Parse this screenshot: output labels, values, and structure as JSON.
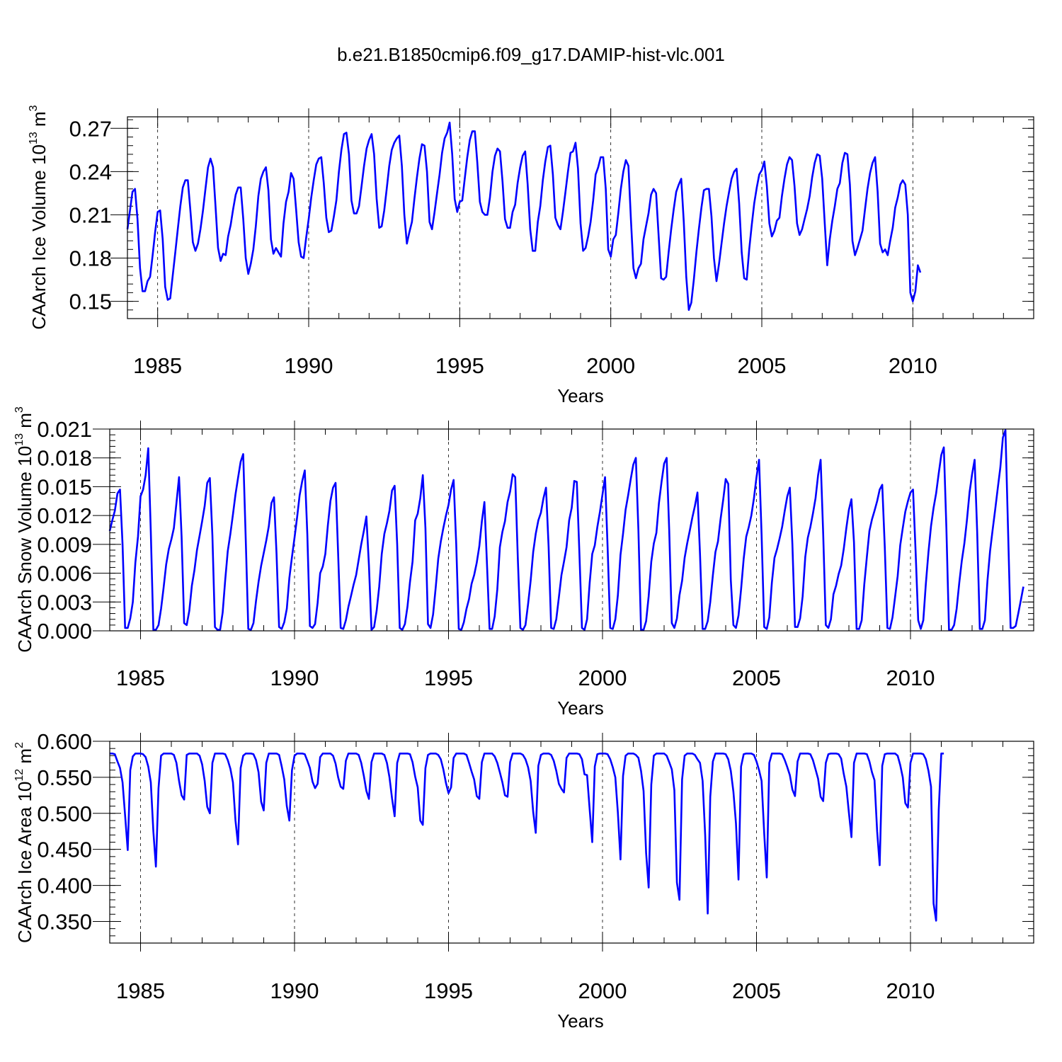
{
  "title": "b.e21.B1850cmip6.f09_g17.DAMIP-hist-vlc.001",
  "colors": {
    "series": "#0000ff",
    "axis": "#000000",
    "gridline": "#000000"
  },
  "chart_data": [
    {
      "type": "line",
      "name": "ice-volume",
      "title": "",
      "xlabel": "Years",
      "ylabel": "CAArch Ice Volume 10",
      "ylabel_exp": "13",
      "ylabel_unit": " m",
      "ylabel_unit_exp": "3",
      "xlim": [
        1984.0,
        2014.0
      ],
      "ylim": [
        0.138,
        0.278
      ],
      "x_ticks": [
        "1985",
        "1990",
        "1995",
        "2000",
        "2005",
        "2010"
      ],
      "y_ticks": [
        "0.15",
        "0.18",
        "0.21",
        "0.24",
        "0.27"
      ],
      "y_tick_values": [
        0.15,
        0.18,
        0.21,
        0.24,
        0.27
      ],
      "x_start": 1984.0,
      "x_step": 0.083333,
      "values": [
        0.2,
        0.213,
        0.226,
        0.228,
        0.207,
        0.173,
        0.157,
        0.157,
        0.164,
        0.167,
        0.182,
        0.198,
        0.212,
        0.213,
        0.193,
        0.16,
        0.151,
        0.152,
        0.168,
        0.184,
        0.2,
        0.216,
        0.229,
        0.234,
        0.234,
        0.213,
        0.191,
        0.185,
        0.19,
        0.2,
        0.213,
        0.228,
        0.243,
        0.249,
        0.243,
        0.216,
        0.187,
        0.178,
        0.183,
        0.182,
        0.195,
        0.203,
        0.214,
        0.224,
        0.229,
        0.229,
        0.207,
        0.18,
        0.169,
        0.176,
        0.186,
        0.202,
        0.223,
        0.235,
        0.24,
        0.243,
        0.227,
        0.193,
        0.183,
        0.187,
        0.184,
        0.181,
        0.204,
        0.219,
        0.226,
        0.239,
        0.235,
        0.214,
        0.191,
        0.181,
        0.18,
        0.194,
        0.207,
        0.222,
        0.234,
        0.245,
        0.249,
        0.25,
        0.232,
        0.208,
        0.198,
        0.199,
        0.209,
        0.22,
        0.24,
        0.255,
        0.266,
        0.267,
        0.252,
        0.22,
        0.211,
        0.211,
        0.216,
        0.23,
        0.244,
        0.256,
        0.262,
        0.266,
        0.252,
        0.221,
        0.201,
        0.202,
        0.213,
        0.228,
        0.244,
        0.255,
        0.26,
        0.263,
        0.265,
        0.244,
        0.21,
        0.19,
        0.198,
        0.205,
        0.221,
        0.236,
        0.249,
        0.259,
        0.258,
        0.24,
        0.205,
        0.2,
        0.212,
        0.225,
        0.238,
        0.253,
        0.263,
        0.267,
        0.274,
        0.252,
        0.221,
        0.212,
        0.219,
        0.22,
        0.235,
        0.25,
        0.262,
        0.268,
        0.268,
        0.246,
        0.219,
        0.212,
        0.21,
        0.21,
        0.222,
        0.24,
        0.251,
        0.256,
        0.254,
        0.233,
        0.207,
        0.201,
        0.201,
        0.212,
        0.217,
        0.232,
        0.243,
        0.251,
        0.254,
        0.231,
        0.2,
        0.185,
        0.185,
        0.205,
        0.216,
        0.234,
        0.247,
        0.257,
        0.258,
        0.238,
        0.208,
        0.203,
        0.2,
        0.212,
        0.226,
        0.24,
        0.253,
        0.254,
        0.26,
        0.242,
        0.204,
        0.185,
        0.187,
        0.195,
        0.205,
        0.22,
        0.238,
        0.243,
        0.25,
        0.25,
        0.228,
        0.186,
        0.181,
        0.193,
        0.196,
        0.211,
        0.228,
        0.24,
        0.248,
        0.244,
        0.207,
        0.173,
        0.166,
        0.173,
        0.176,
        0.193,
        0.202,
        0.211,
        0.224,
        0.228,
        0.225,
        0.196,
        0.166,
        0.165,
        0.167,
        0.184,
        0.2,
        0.214,
        0.226,
        0.231,
        0.235,
        0.205,
        0.167,
        0.144,
        0.149,
        0.165,
        0.184,
        0.2,
        0.215,
        0.227,
        0.228,
        0.228,
        0.209,
        0.18,
        0.164,
        0.176,
        0.19,
        0.204,
        0.216,
        0.226,
        0.235,
        0.24,
        0.242,
        0.218,
        0.184,
        0.166,
        0.165,
        0.186,
        0.203,
        0.218,
        0.229,
        0.238,
        0.241,
        0.247,
        0.23,
        0.204,
        0.195,
        0.199,
        0.206,
        0.208,
        0.223,
        0.235,
        0.245,
        0.25,
        0.248,
        0.23,
        0.204,
        0.196,
        0.2,
        0.207,
        0.214,
        0.223,
        0.236,
        0.246,
        0.252,
        0.251,
        0.235,
        0.204,
        0.175,
        0.193,
        0.206,
        0.216,
        0.228,
        0.232,
        0.246,
        0.253,
        0.252,
        0.231,
        0.192,
        0.182,
        0.187,
        0.193,
        0.199,
        0.214,
        0.228,
        0.239,
        0.246,
        0.25,
        0.226,
        0.19,
        0.184,
        0.186,
        0.182,
        0.192,
        0.201,
        0.215,
        0.222,
        0.231,
        0.234,
        0.231,
        0.21,
        0.156,
        0.15,
        0.157,
        0.175,
        0.17
      ]
    },
    {
      "type": "line",
      "name": "snow-volume",
      "title": "",
      "xlabel": "Years",
      "ylabel": "CAArch Snow Volume 10",
      "ylabel_exp": "13",
      "ylabel_unit": " m",
      "ylabel_unit_exp": "3",
      "xlim": [
        1984.0,
        2014.0
      ],
      "ylim": [
        0.0,
        0.021
      ],
      "x_ticks": [
        "1985",
        "1990",
        "1995",
        "2000",
        "2005",
        "2010"
      ],
      "y_ticks": [
        "0.000",
        "0.003",
        "0.006",
        "0.009",
        "0.012",
        "0.015",
        "0.018",
        "0.021"
      ],
      "y_tick_values": [
        0.0,
        0.003,
        0.006,
        0.009,
        0.012,
        0.015,
        0.018,
        0.021
      ],
      "x_start": 1984.0,
      "x_step": 0.083333,
      "values": [
        0.0104,
        0.0115,
        0.0125,
        0.0143,
        0.0147,
        0.009,
        0.0003,
        0.0003,
        0.0013,
        0.003,
        0.0071,
        0.0098,
        0.014,
        0.0147,
        0.0162,
        0.019,
        0.0103,
        0.0001,
        0.0001,
        0.0006,
        0.0023,
        0.0045,
        0.0069,
        0.0085,
        0.0095,
        0.0107,
        0.0133,
        0.016,
        0.0098,
        0.0008,
        0.0006,
        0.0021,
        0.0047,
        0.0063,
        0.0084,
        0.0099,
        0.0114,
        0.013,
        0.0154,
        0.0159,
        0.0099,
        0.0004,
        0.0001,
        0.0001,
        0.0019,
        0.0053,
        0.0083,
        0.0101,
        0.0121,
        0.0142,
        0.0159,
        0.0176,
        0.0184,
        0.0095,
        0.0002,
        0.0001,
        0.0008,
        0.0031,
        0.0051,
        0.0068,
        0.0081,
        0.0094,
        0.0109,
        0.0133,
        0.0139,
        0.008,
        0.0004,
        0.0002,
        0.0009,
        0.0023,
        0.0055,
        0.0077,
        0.0097,
        0.0118,
        0.0141,
        0.0156,
        0.0167,
        0.01,
        0.0005,
        0.0003,
        0.0007,
        0.0029,
        0.006,
        0.0067,
        0.008,
        0.011,
        0.0135,
        0.0149,
        0.0154,
        0.008,
        0.0003,
        0.0002,
        0.0011,
        0.0025,
        0.0036,
        0.0048,
        0.0058,
        0.0074,
        0.009,
        0.0104,
        0.0119,
        0.0068,
        0.0001,
        0.0004,
        0.0021,
        0.0046,
        0.008,
        0.0101,
        0.0112,
        0.0125,
        0.0146,
        0.0151,
        0.009,
        0.0003,
        0.0001,
        0.0007,
        0.0025,
        0.0051,
        0.0072,
        0.0115,
        0.0122,
        0.0138,
        0.0162,
        0.0107,
        0.0007,
        0.0003,
        0.0017,
        0.0045,
        0.0075,
        0.0093,
        0.0107,
        0.012,
        0.0131,
        0.0147,
        0.0157,
        0.009,
        0.0002,
        0.0001,
        0.0009,
        0.0023,
        0.0033,
        0.0049,
        0.0058,
        0.0071,
        0.0088,
        0.0114,
        0.0134,
        0.0068,
        0.0002,
        0.0002,
        0.0015,
        0.0043,
        0.0087,
        0.0103,
        0.0114,
        0.0134,
        0.0145,
        0.0163,
        0.016,
        0.0075,
        0.0003,
        0.0001,
        0.0006,
        0.0028,
        0.0052,
        0.0082,
        0.0101,
        0.0115,
        0.0123,
        0.0138,
        0.0149,
        0.0087,
        0.0003,
        0.0002,
        0.0012,
        0.0035,
        0.0058,
        0.0072,
        0.0087,
        0.0115,
        0.0128,
        0.0156,
        0.0155,
        0.008,
        0.0003,
        0.0001,
        0.0012,
        0.005,
        0.008,
        0.0089,
        0.0108,
        0.0124,
        0.0142,
        0.016,
        0.0087,
        0.0003,
        0.0002,
        0.0012,
        0.0037,
        0.0079,
        0.0101,
        0.0126,
        0.0141,
        0.0158,
        0.0173,
        0.018,
        0.0105,
        0.0001,
        0.0001,
        0.001,
        0.0036,
        0.0072,
        0.0091,
        0.0102,
        0.0133,
        0.0155,
        0.0174,
        0.018,
        0.0105,
        0.0008,
        0.0003,
        0.0013,
        0.0037,
        0.0052,
        0.0076,
        0.0091,
        0.0104,
        0.0118,
        0.013,
        0.0144,
        0.008,
        0.0002,
        0.0002,
        0.001,
        0.003,
        0.0058,
        0.0082,
        0.0093,
        0.0116,
        0.0136,
        0.0158,
        0.0153,
        0.0053,
        0.0006,
        0.0003,
        0.0016,
        0.0043,
        0.0075,
        0.0098,
        0.0108,
        0.012,
        0.0138,
        0.016,
        0.0178,
        0.01,
        0.0004,
        0.0002,
        0.0014,
        0.005,
        0.0076,
        0.0085,
        0.0096,
        0.0108,
        0.0125,
        0.014,
        0.0149,
        0.009,
        0.0004,
        0.0004,
        0.0013,
        0.0036,
        0.0077,
        0.0097,
        0.0108,
        0.0122,
        0.0138,
        0.0162,
        0.0178,
        0.0101,
        0.0006,
        0.0003,
        0.0012,
        0.0038,
        0.0047,
        0.0059,
        0.0068,
        0.0085,
        0.0107,
        0.0126,
        0.0137,
        0.0092,
        0.0002,
        0.0002,
        0.0011,
        0.0048,
        0.0077,
        0.0104,
        0.0116,
        0.0125,
        0.0135,
        0.0147,
        0.0152,
        0.0087,
        0.0003,
        0.0002,
        0.0014,
        0.0035,
        0.0057,
        0.0089,
        0.0107,
        0.0124,
        0.0135,
        0.0144,
        0.0147,
        0.0083,
        0.0011,
        0.0002,
        0.0011,
        0.0049,
        0.0082,
        0.0109,
        0.0128,
        0.0143,
        0.0164,
        0.0183,
        0.0191,
        0.0107,
        0.0001,
        0.0001,
        0.0006,
        0.0023,
        0.005,
        0.0073,
        0.0091,
        0.0115,
        0.0144,
        0.0163,
        0.0178,
        0.0103,
        0.0002,
        0.0002,
        0.0011,
        0.0052,
        0.0083,
        0.0105,
        0.0126,
        0.0148,
        0.017,
        0.0201,
        0.0209,
        0.0108,
        0.0003,
        0.0003,
        0.0005,
        0.0018,
        0.0032,
        0.0046
      ]
    },
    {
      "type": "line",
      "name": "ice-area",
      "title": "",
      "xlabel": "Years",
      "ylabel": "CAArch Ice Area 10",
      "ylabel_exp": "12",
      "ylabel_unit": " m",
      "ylabel_unit_exp": "2",
      "xlim": [
        1984.0,
        2014.0
      ],
      "ylim": [
        0.32,
        0.6
      ],
      "x_ticks": [
        "1985",
        "1990",
        "1995",
        "2000",
        "2005",
        "2010"
      ],
      "y_ticks": [
        "0.350",
        "0.400",
        "0.450",
        "0.500",
        "0.550",
        "0.600"
      ],
      "y_tick_values": [
        0.35,
        0.4,
        0.45,
        0.5,
        0.55,
        0.6
      ],
      "x_start": 1984.0,
      "x_step": 0.083333,
      "values": [
        0.583,
        0.583,
        0.582,
        0.572,
        0.563,
        0.543,
        0.497,
        0.449,
        0.56,
        0.579,
        0.583,
        0.583,
        0.583,
        0.582,
        0.578,
        0.565,
        0.543,
        0.475,
        0.426,
        0.535,
        0.58,
        0.583,
        0.583,
        0.583,
        0.583,
        0.581,
        0.57,
        0.545,
        0.525,
        0.519,
        0.581,
        0.583,
        0.583,
        0.583,
        0.583,
        0.58,
        0.568,
        0.545,
        0.509,
        0.5,
        0.57,
        0.583,
        0.583,
        0.583,
        0.583,
        0.582,
        0.574,
        0.562,
        0.543,
        0.49,
        0.457,
        0.563,
        0.58,
        0.583,
        0.583,
        0.583,
        0.582,
        0.574,
        0.557,
        0.516,
        0.504,
        0.57,
        0.583,
        0.583,
        0.583,
        0.583,
        0.581,
        0.565,
        0.547,
        0.51,
        0.49,
        0.56,
        0.58,
        0.583,
        0.583,
        0.583,
        0.582,
        0.573,
        0.563,
        0.544,
        0.535,
        0.541,
        0.578,
        0.583,
        0.583,
        0.583,
        0.583,
        0.58,
        0.569,
        0.55,
        0.537,
        0.534,
        0.573,
        0.583,
        0.583,
        0.583,
        0.583,
        0.581,
        0.57,
        0.552,
        0.531,
        0.52,
        0.571,
        0.583,
        0.583,
        0.583,
        0.583,
        0.581,
        0.57,
        0.55,
        0.521,
        0.496,
        0.57,
        0.583,
        0.583,
        0.583,
        0.583,
        0.582,
        0.571,
        0.551,
        0.536,
        0.49,
        0.484,
        0.563,
        0.581,
        0.583,
        0.583,
        0.583,
        0.581,
        0.575,
        0.561,
        0.542,
        0.528,
        0.536,
        0.577,
        0.583,
        0.583,
        0.583,
        0.583,
        0.581,
        0.57,
        0.558,
        0.547,
        0.524,
        0.52,
        0.571,
        0.583,
        0.583,
        0.583,
        0.583,
        0.579,
        0.57,
        0.557,
        0.543,
        0.525,
        0.523,
        0.571,
        0.583,
        0.583,
        0.583,
        0.583,
        0.581,
        0.575,
        0.564,
        0.545,
        0.502,
        0.473,
        0.566,
        0.581,
        0.583,
        0.583,
        0.583,
        0.581,
        0.573,
        0.559,
        0.541,
        0.534,
        0.529,
        0.577,
        0.583,
        0.583,
        0.583,
        0.583,
        0.582,
        0.575,
        0.554,
        0.553,
        0.505,
        0.46,
        0.565,
        0.582,
        0.583,
        0.583,
        0.583,
        0.582,
        0.575,
        0.564,
        0.55,
        0.501,
        0.436,
        0.552,
        0.58,
        0.583,
        0.583,
        0.583,
        0.581,
        0.577,
        0.559,
        0.531,
        0.445,
        0.397,
        0.54,
        0.58,
        0.583,
        0.583,
        0.583,
        0.583,
        0.58,
        0.571,
        0.561,
        0.532,
        0.404,
        0.38,
        0.547,
        0.58,
        0.583,
        0.583,
        0.583,
        0.581,
        0.575,
        0.57,
        0.545,
        0.47,
        0.361,
        0.523,
        0.572,
        0.583,
        0.583,
        0.583,
        0.583,
        0.582,
        0.575,
        0.559,
        0.53,
        0.486,
        0.408,
        0.565,
        0.582,
        0.583,
        0.583,
        0.583,
        0.581,
        0.572,
        0.56,
        0.545,
        0.472,
        0.411,
        0.57,
        0.583,
        0.583,
        0.583,
        0.583,
        0.582,
        0.574,
        0.564,
        0.553,
        0.533,
        0.524,
        0.572,
        0.583,
        0.583,
        0.583,
        0.583,
        0.582,
        0.574,
        0.561,
        0.548,
        0.523,
        0.517,
        0.57,
        0.582,
        0.583,
        0.583,
        0.583,
        0.582,
        0.576,
        0.555,
        0.537,
        0.501,
        0.467,
        0.57,
        0.583,
        0.583,
        0.583,
        0.583,
        0.582,
        0.572,
        0.557,
        0.546,
        0.475,
        0.428,
        0.566,
        0.582,
        0.583,
        0.583,
        0.583,
        0.583,
        0.58,
        0.567,
        0.55,
        0.514,
        0.508,
        0.57,
        0.583,
        0.583,
        0.583,
        0.583,
        0.582,
        0.575,
        0.559,
        0.537,
        0.375,
        0.351,
        0.505,
        0.583,
        0.583
      ]
    }
  ]
}
